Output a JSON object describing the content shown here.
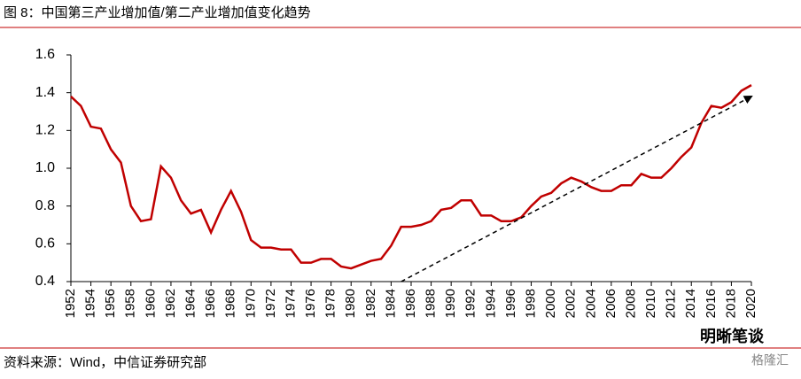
{
  "chart_data": {
    "type": "line",
    "title": "图 8：中国第三产业增加值/第二产业增加值变化趋势",
    "source": "资料来源：Wind，中信证券研究部",
    "watermark": [
      "明晰笔谈",
      "格隆汇"
    ],
    "x": [
      1952,
      1953,
      1954,
      1955,
      1956,
      1957,
      1958,
      1959,
      1960,
      1961,
      1962,
      1963,
      1964,
      1965,
      1966,
      1967,
      1968,
      1969,
      1970,
      1971,
      1972,
      1973,
      1974,
      1975,
      1976,
      1977,
      1978,
      1979,
      1980,
      1981,
      1982,
      1983,
      1984,
      1985,
      1986,
      1987,
      1988,
      1989,
      1990,
      1991,
      1992,
      1993,
      1994,
      1995,
      1996,
      1997,
      1998,
      1999,
      2000,
      2001,
      2002,
      2003,
      2004,
      2005,
      2006,
      2007,
      2008,
      2009,
      2010,
      2011,
      2012,
      2013,
      2014,
      2015,
      2016,
      2017,
      2018,
      2019,
      2020
    ],
    "values": [
      1.38,
      1.33,
      1.22,
      1.21,
      1.1,
      1.03,
      0.8,
      0.72,
      0.73,
      1.01,
      0.95,
      0.83,
      0.76,
      0.78,
      0.66,
      0.78,
      0.88,
      0.77,
      0.62,
      0.58,
      0.58,
      0.57,
      0.57,
      0.5,
      0.5,
      0.52,
      0.52,
      0.48,
      0.47,
      0.49,
      0.51,
      0.52,
      0.59,
      0.69,
      0.69,
      0.7,
      0.72,
      0.78,
      0.79,
      0.83,
      0.83,
      0.75,
      0.75,
      0.72,
      0.72,
      0.74,
      0.8,
      0.85,
      0.87,
      0.92,
      0.95,
      0.93,
      0.9,
      0.88,
      0.88,
      0.91,
      0.91,
      0.97,
      0.95,
      0.95,
      1.0,
      1.06,
      1.11,
      1.24,
      1.33,
      1.32,
      1.35,
      1.41,
      1.44
    ],
    "color": "#c00000",
    "trend_arrow": {
      "x": [
        1985,
        2020
      ],
      "values": [
        0.4,
        1.38
      ],
      "color": "#000000"
    },
    "xlim": [
      1952,
      2020
    ],
    "xticks": [
      1952,
      1954,
      1956,
      1958,
      1960,
      1962,
      1964,
      1966,
      1968,
      1970,
      1972,
      1974,
      1976,
      1978,
      1980,
      1982,
      1984,
      1986,
      1988,
      1990,
      1992,
      1994,
      1996,
      1998,
      2000,
      2002,
      2004,
      2006,
      2008,
      2010,
      2012,
      2014,
      2016,
      2018,
      2020
    ],
    "ylim": [
      0.4,
      1.6
    ],
    "yticks": [
      0.4,
      0.6,
      0.8,
      {
        "value": 1.0,
        "label": "1.0"
      },
      1.2,
      1.4,
      1.6
    ],
    "grid": false
  }
}
